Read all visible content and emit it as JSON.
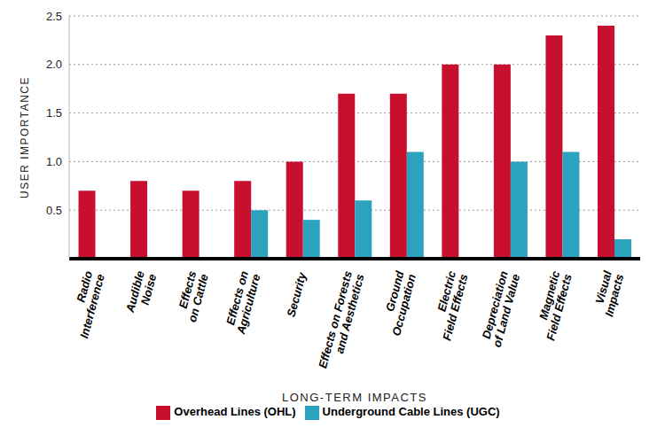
{
  "chart_data": {
    "type": "bar",
    "x_label": "LONG-TERM IMPACTS",
    "y_label": "USER IMPORTANCE",
    "categories": [
      "Radio Interference",
      "Audible Noise",
      "Effects on Cattle",
      "Effects on Agriculture",
      "Security",
      "Effects on Forests and Aesthetics",
      "Ground Occupation",
      "Electric Field Effects",
      "Depreciation of Land Value",
      "Magnetic Field Effects",
      "Visual Impacts"
    ],
    "series": [
      {
        "name": "Overhead Lines (OHL)",
        "color": "#c8102e",
        "values": [
          0.7,
          0.8,
          0.7,
          0.8,
          1.0,
          1.7,
          1.7,
          2.0,
          2.0,
          2.3,
          2.4
        ]
      },
      {
        "name": "Underground Cable Lines (UGC)",
        "color": "#2ba3bf",
        "values": [
          null,
          null,
          null,
          0.5,
          0.4,
          0.6,
          1.1,
          null,
          1.0,
          1.1,
          0.2
        ]
      }
    ],
    "ylim": [
      0,
      2.5
    ],
    "yticks": [
      0.5,
      {
        "value": 1,
        "label": "1.0"
      },
      1.5,
      {
        "value": 2,
        "label": "2.0"
      },
      2.5
    ],
    "grid": true,
    "legend": "bottom"
  }
}
